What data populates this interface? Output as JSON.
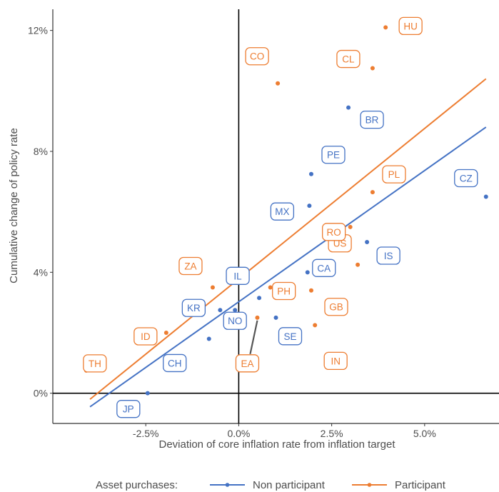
{
  "chart_data": {
    "type": "scatter",
    "xlabel": "Deviation of core inflation rate from inflation target",
    "ylabel": "Cumulative change of policy rate",
    "xlim": [
      -5.0,
      7.0
    ],
    "ylim": [
      -1.0,
      12.7
    ],
    "x_ticks": [
      -2.5,
      0.0,
      2.5,
      5.0
    ],
    "x_tick_labels": [
      "-2.5%",
      "0.0%",
      "2.5%",
      "5.0%"
    ],
    "y_ticks": [
      0,
      4,
      8,
      12
    ],
    "y_tick_labels": [
      "0%",
      "4%",
      "8%",
      "12%"
    ],
    "grid": false,
    "legend": {
      "title": "Asset purchases:",
      "position": "bottom",
      "entries": [
        "Non participant",
        "Participant"
      ]
    },
    "colors": {
      "Non participant": "#4472c4",
      "Participant": "#ed7d31"
    },
    "series": [
      {
        "name": "Non participant",
        "color": "#4472c4",
        "points": [
          {
            "label": "JP",
            "x": -2.45,
            "y": 0.0
          },
          {
            "label": "CH",
            "x": -0.8,
            "y": 1.8
          },
          {
            "label": "KR",
            "x": -0.5,
            "y": 2.75
          },
          {
            "label": "NO",
            "x": -0.1,
            "y": 2.75
          },
          {
            "label": "IL",
            "x": 0.55,
            "y": 3.15
          },
          {
            "label": "SE",
            "x": 1.0,
            "y": 2.5
          },
          {
            "label": "MX",
            "x": 1.9,
            "y": 6.2
          },
          {
            "label": "PE",
            "x": 1.95,
            "y": 7.25
          },
          {
            "label": "CA",
            "x": 1.85,
            "y": 4.0
          },
          {
            "label": "BR",
            "x": 2.95,
            "y": 9.45
          },
          {
            "label": "IS",
            "x": 3.45,
            "y": 5.0
          },
          {
            "label": "CZ",
            "x": 6.65,
            "y": 6.5
          }
        ],
        "trend": {
          "x": [
            -4.0,
            6.65
          ],
          "y": [
            -0.45,
            8.8
          ]
        }
      },
      {
        "name": "Participant",
        "color": "#ed7d31",
        "points": [
          {
            "label": "TH",
            "x": -4.1,
            "y": 0.75
          },
          {
            "label": "ID",
            "x": -1.95,
            "y": 2.0
          },
          {
            "label": "ZA",
            "x": -0.7,
            "y": 3.5
          },
          {
            "label": "EA",
            "x": 0.5,
            "y": 2.5
          },
          {
            "label": "PH",
            "x": 0.85,
            "y": 3.5
          },
          {
            "label": "CO",
            "x": 1.05,
            "y": 10.25
          },
          {
            "label": "GB",
            "x": 1.95,
            "y": 3.4
          },
          {
            "label": "IN",
            "x": 2.05,
            "y": 2.25
          },
          {
            "label": "US",
            "x": 3.2,
            "y": 4.25
          },
          {
            "label": "RO",
            "x": 3.0,
            "y": 5.5
          },
          {
            "label": "PL",
            "x": 3.6,
            "y": 6.65
          },
          {
            "label": "CL",
            "x": 3.6,
            "y": 10.75
          },
          {
            "label": "HU",
            "x": 3.95,
            "y": 12.1
          }
        ],
        "trend": {
          "x": [
            -4.0,
            6.65
          ],
          "y": [
            -0.2,
            10.4
          ]
        }
      }
    ]
  }
}
